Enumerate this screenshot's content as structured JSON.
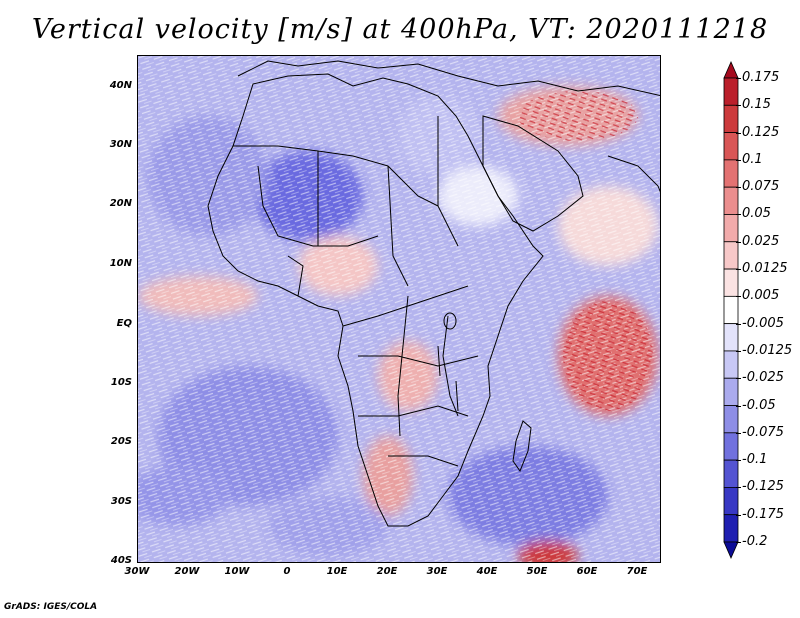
{
  "title": "Vertical velocity [m/s] at 400hPa, VT: 2020111218",
  "footer": "GrADS: IGES/COLA",
  "map": {
    "region": "Africa",
    "variable": "Vertical velocity",
    "units": "m/s",
    "level": "400hPa",
    "valid_time": "2020111218",
    "lat_labels": [
      "40N",
      "30N",
      "20N",
      "10N",
      "EQ",
      "10S",
      "20S",
      "30S",
      "40S"
    ],
    "lon_labels": [
      "30W",
      "20W",
      "10W",
      "0",
      "10E",
      "20E",
      "30E",
      "40E",
      "50E",
      "60E",
      "70E"
    ],
    "lat_values": [
      40,
      30,
      20,
      10,
      0,
      -10,
      -20,
      -30,
      -40
    ],
    "lon_values": [
      -30,
      -20,
      -10,
      0,
      10,
      20,
      30,
      40,
      50,
      60,
      70
    ],
    "lat_range": [
      -40,
      45
    ],
    "lon_range": [
      -30,
      75
    ]
  },
  "colorbar": {
    "labels": [
      "0.175",
      "0.15",
      "0.125",
      "0.1",
      "0.075",
      "0.05",
      "0.025",
      "0.0125",
      "0.005",
      "-0.005",
      "-0.0125",
      "-0.025",
      "-0.05",
      "-0.075",
      "-0.1",
      "-0.125",
      "-0.175",
      "-0.2"
    ],
    "colors": [
      "#a40a1e",
      "#bb1f2b",
      "#cc3a3c",
      "#d95656",
      "#e37272",
      "#eb8e8e",
      "#f2abab",
      "#f7c8c8",
      "#fbe3e3",
      "#ffffff",
      "#e3e3fb",
      "#c8c8f5",
      "#ababee",
      "#8e8ee6",
      "#7171de",
      "#5454d2",
      "#3838c4",
      "#1f1fb1",
      "#0c0c96"
    ]
  }
}
